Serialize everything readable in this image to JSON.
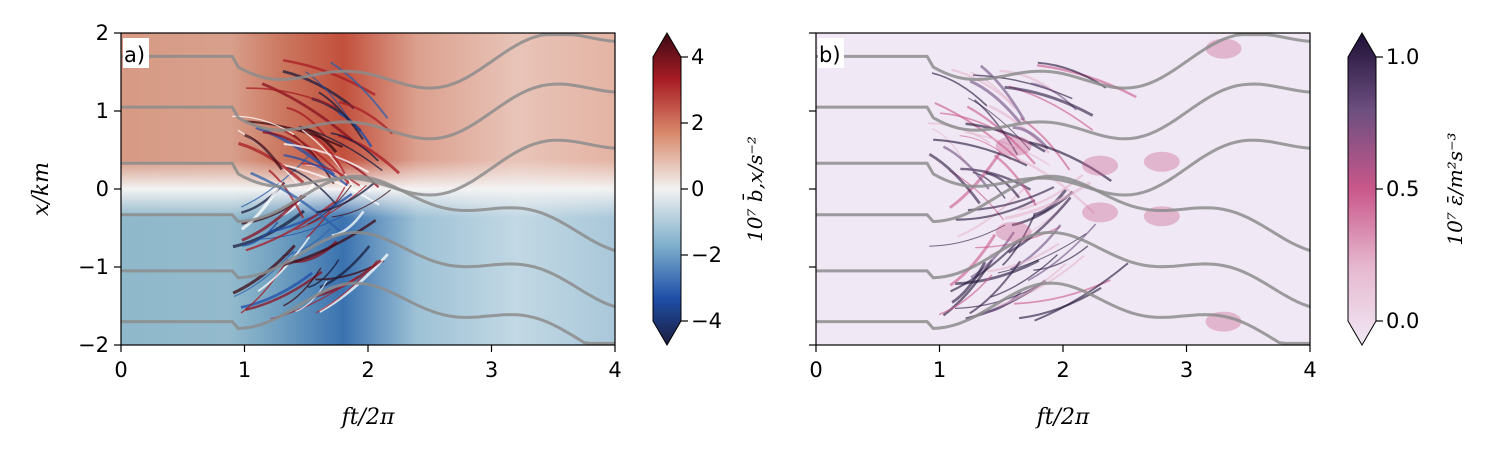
{
  "chart_data": [
    {
      "type": "heatmap",
      "panel_label": "a)",
      "xlabel": "ft/2π",
      "ylabel": "x/km",
      "xlim": [
        0,
        4
      ],
      "ylim": [
        -2,
        2
      ],
      "xticks": [
        0,
        1,
        2,
        3,
        4
      ],
      "yticks": [
        -2,
        -1,
        0,
        1,
        2
      ],
      "colorbar": {
        "label": "10⁷ b̄,x/s⁻²",
        "range": [
          -4,
          4
        ],
        "ticks": [
          -4,
          -2,
          0,
          2,
          4
        ],
        "colormap": "diverging blue-white-red",
        "colors": [
          "#1b1d3f",
          "#1f4fa8",
          "#7fb0cc",
          "#f2f2f2",
          "#d9886b",
          "#a81c24",
          "#3d0a14"
        ],
        "extend": "both"
      },
      "contour_color": "#8c8c8c"
    },
    {
      "type": "heatmap",
      "panel_label": "b)",
      "xlabel": "ft/2π",
      "ylabel": "",
      "xlim": [
        0,
        4
      ],
      "ylim": [
        -2,
        2
      ],
      "xticks": [
        0,
        1,
        2,
        3,
        4
      ],
      "yticks": [
        -2,
        -1,
        0,
        1,
        2
      ],
      "colorbar": {
        "label": "10⁷ ε̄/m²s⁻³",
        "range": [
          0,
          1
        ],
        "ticks": [
          0.0,
          0.5,
          1.0
        ],
        "tick_labels": [
          "0.0",
          "0.5",
          "1.0"
        ],
        "colormap": "sequential lavender-pink-purple",
        "colors": [
          "#f1e8f5",
          "#e6b8cf",
          "#c9578a",
          "#6d4f80",
          "#1e1036"
        ],
        "extend": "both"
      },
      "contour_color": "#8c8c8c"
    }
  ]
}
